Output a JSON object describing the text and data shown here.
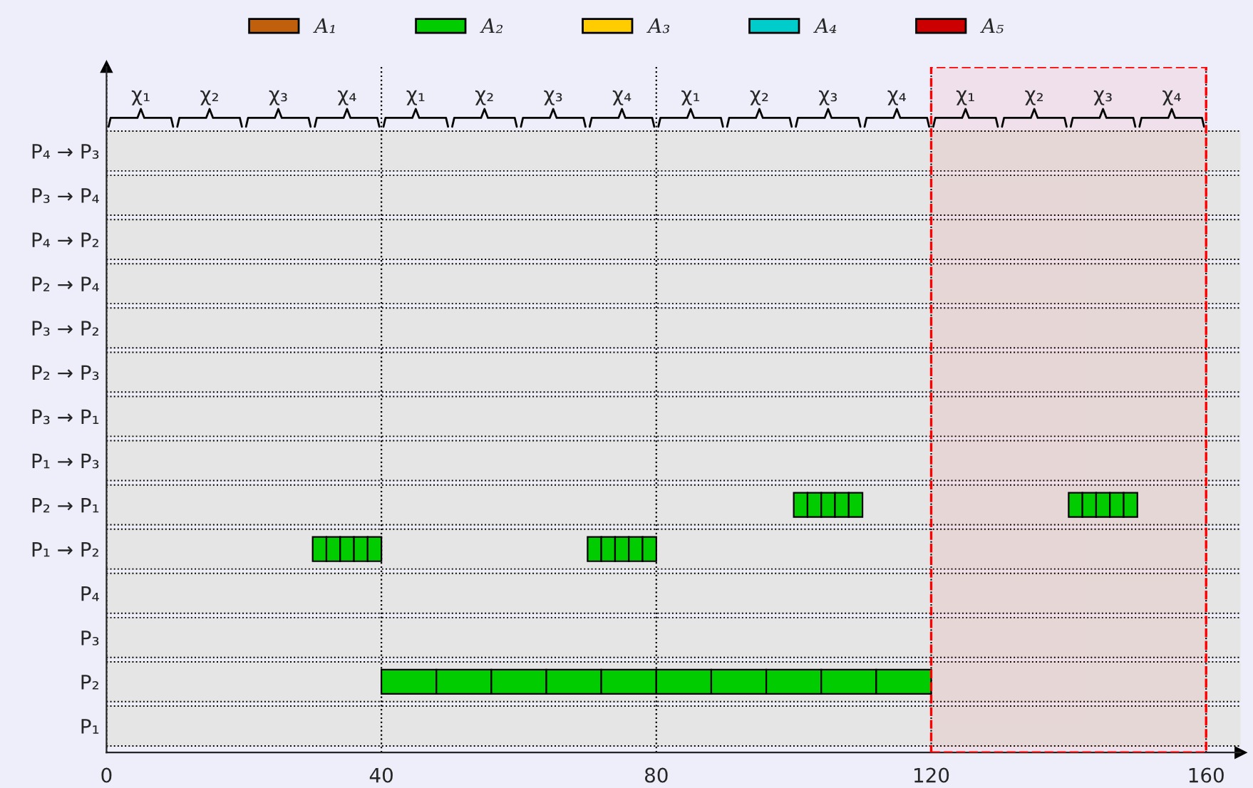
{
  "chart_data": {
    "type": "bar",
    "orientation": "horizontal",
    "categories": [
      "P₄ → P₃",
      "P₃ → P₄",
      "P₄ → P₂",
      "P₂ → P₄",
      "P₃ → P₂",
      "P₂ → P₃",
      "P₃ → P₁",
      "P₁ → P₃",
      "P₂ → P₁",
      "P₁ → P₂",
      "P₄",
      "P₃",
      "P₂",
      "P₁"
    ],
    "series": [
      {
        "name": "A₁",
        "color": "#c0600c",
        "values": [
          null,
          null,
          null,
          null,
          null,
          null,
          null,
          null,
          null,
          null,
          null,
          null,
          null,
          null
        ]
      },
      {
        "name": "A₂",
        "color": "#00cc00",
        "values": [
          null,
          null,
          null,
          null,
          null,
          null,
          null,
          null,
          2,
          2,
          null,
          null,
          8,
          null
        ],
        "base": [
          null,
          null,
          null,
          null,
          null,
          null,
          null,
          null,
          100,
          30,
          null,
          null,
          40,
          null
        ]
      },
      {
        "color": "#00cc00",
        "values": [
          null,
          null,
          null,
          null,
          null,
          null,
          null,
          null,
          2,
          2,
          null,
          null,
          8,
          null
        ],
        "base": [
          null,
          null,
          null,
          null,
          null,
          null,
          null,
          null,
          102,
          32,
          null,
          null,
          48,
          null
        ]
      },
      {
        "color": "#00cc00",
        "values": [
          null,
          null,
          null,
          null,
          null,
          null,
          null,
          null,
          2,
          2,
          null,
          null,
          8,
          null
        ],
        "base": [
          null,
          null,
          null,
          null,
          null,
          null,
          null,
          null,
          104,
          34,
          null,
          null,
          56,
          null
        ]
      },
      {
        "color": "#00cc00",
        "values": [
          null,
          null,
          null,
          null,
          null,
          null,
          null,
          null,
          2,
          2,
          null,
          null,
          8,
          null
        ],
        "base": [
          null,
          null,
          null,
          null,
          null,
          null,
          null,
          null,
          106,
          36,
          null,
          null,
          64,
          null
        ]
      },
      {
        "color": "#00cc00",
        "values": [
          null,
          null,
          null,
          null,
          null,
          null,
          null,
          null,
          2,
          2,
          null,
          null,
          8,
          null
        ],
        "base": [
          null,
          null,
          null,
          null,
          null,
          null,
          null,
          null,
          108,
          38,
          null,
          null,
          72,
          null
        ]
      },
      {
        "color": "#00cc00",
        "values": [
          null,
          null,
          null,
          null,
          null,
          null,
          null,
          null,
          2,
          2,
          null,
          null,
          8,
          null
        ],
        "base": [
          null,
          null,
          null,
          null,
          null,
          null,
          null,
          null,
          140,
          70,
          null,
          null,
          80,
          null
        ]
      },
      {
        "color": "#00cc00",
        "values": [
          null,
          null,
          null,
          null,
          null,
          null,
          null,
          null,
          2,
          2,
          null,
          null,
          8,
          null
        ],
        "base": [
          null,
          null,
          null,
          null,
          null,
          null,
          null,
          null,
          142,
          72,
          null,
          null,
          88,
          null
        ]
      },
      {
        "color": "#00cc00",
        "values": [
          null,
          null,
          null,
          null,
          null,
          null,
          null,
          null,
          2,
          2,
          null,
          null,
          8,
          null
        ],
        "base": [
          null,
          null,
          null,
          null,
          null,
          null,
          null,
          null,
          144,
          74,
          null,
          null,
          96,
          null
        ]
      },
      {
        "color": "#00cc00",
        "values": [
          null,
          null,
          null,
          null,
          null,
          null,
          null,
          null,
          2,
          2,
          null,
          null,
          8,
          null
        ],
        "base": [
          null,
          null,
          null,
          null,
          null,
          null,
          null,
          null,
          146,
          76,
          null,
          null,
          104,
          null
        ]
      },
      {
        "color": "#00cc00",
        "values": [
          null,
          null,
          null,
          null,
          null,
          null,
          null,
          null,
          2,
          2,
          null,
          null,
          8,
          null
        ],
        "base": [
          null,
          null,
          null,
          null,
          null,
          null,
          null,
          null,
          148,
          78,
          null,
          null,
          112,
          null
        ]
      },
      {
        "name": "A₃",
        "color": "#ffcc00",
        "values": [
          null,
          null,
          null,
          null,
          null,
          null,
          null,
          null,
          null,
          null,
          null,
          null,
          null,
          null
        ]
      },
      {
        "name": "A₄",
        "color": "#00cccc",
        "values": [
          null,
          null,
          null,
          null,
          null,
          null,
          null,
          null,
          null,
          null,
          null,
          null,
          null,
          null
        ]
      },
      {
        "name": "A₅",
        "color": "#cc0000",
        "values": [
          null,
          null,
          null,
          null,
          null,
          null,
          null,
          null,
          null,
          null,
          null,
          null,
          null,
          null
        ]
      }
    ],
    "xlim": [
      0,
      165
    ],
    "xticks": [
      0,
      40,
      80,
      120,
      160
    ],
    "grid": "x",
    "legend": "top",
    "bands": [
      {
        "axis": "x",
        "from": 120,
        "to": 160,
        "color": "#ff0000"
      }
    ],
    "annotations": [
      "χ₁",
      "χ₂",
      "χ₃",
      "χ₄",
      "χ₁",
      "χ₂",
      "χ₃",
      "χ₄",
      "χ₁",
      "χ₂",
      "χ₃",
      "χ₄",
      "χ₁",
      "χ₂",
      "χ₃",
      "χ₄"
    ]
  }
}
